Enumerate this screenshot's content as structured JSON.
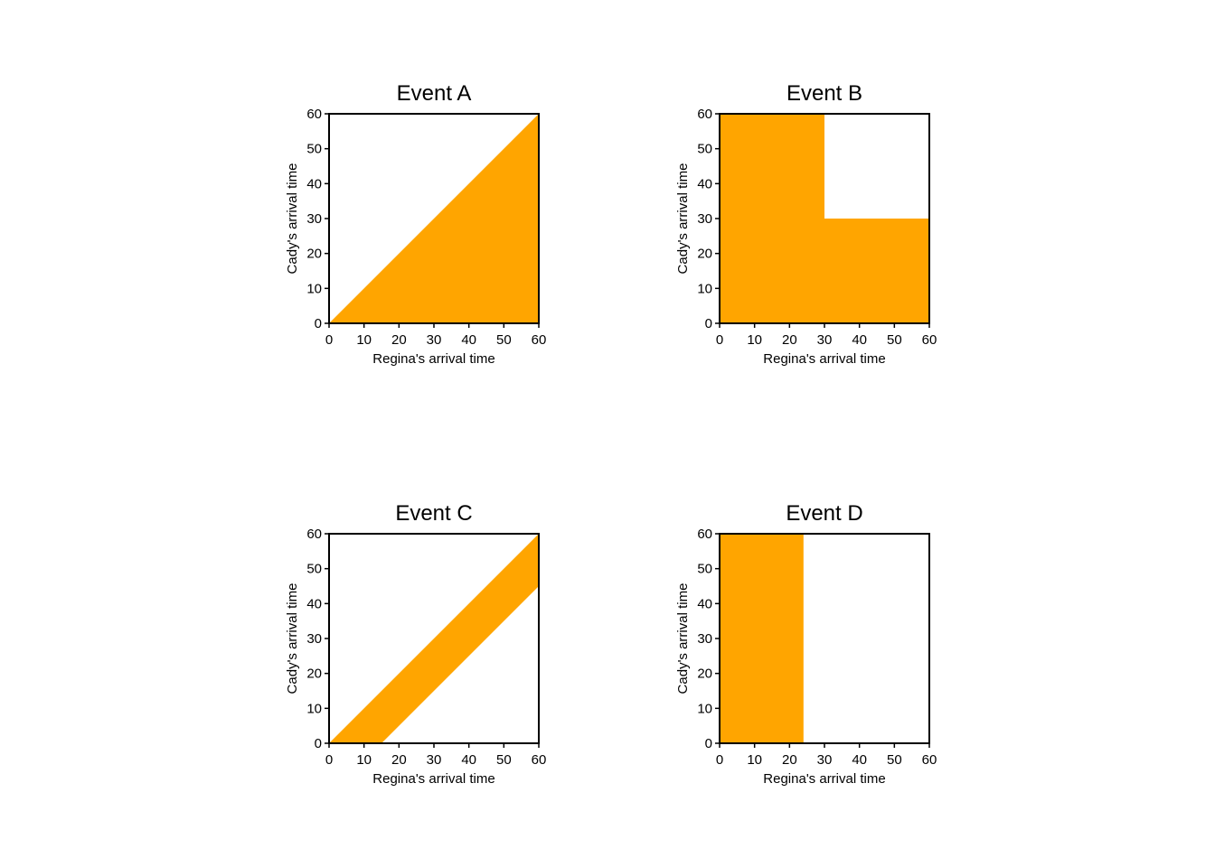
{
  "figure": {
    "fill_color": "#FFA500",
    "frame_color": "#000000",
    "background": "#FFFFFF"
  },
  "chart_data": [
    {
      "type": "area",
      "title": "Event A",
      "xlabel": "Regina's arrival time",
      "ylabel": "Cady's arrival time",
      "xlim": [
        0,
        60
      ],
      "ylim": [
        0,
        60
      ],
      "x_ticks": [
        0,
        10,
        20,
        30,
        40,
        50,
        60
      ],
      "y_ticks": [
        0,
        10,
        20,
        30,
        40,
        50,
        60
      ],
      "shaded_region": [
        [
          0,
          0
        ],
        [
          60,
          0
        ],
        [
          60,
          60
        ]
      ]
    },
    {
      "type": "area",
      "title": "Event B",
      "xlabel": "Regina's arrival time",
      "ylabel": "Cady's arrival time",
      "xlim": [
        0,
        60
      ],
      "ylim": [
        0,
        60
      ],
      "x_ticks": [
        0,
        10,
        20,
        30,
        40,
        50,
        60
      ],
      "y_ticks": [
        0,
        10,
        20,
        30,
        40,
        50,
        60
      ],
      "shaded_region": [
        [
          0,
          0
        ],
        [
          60,
          0
        ],
        [
          60,
          30
        ],
        [
          30,
          30
        ],
        [
          30,
          60
        ],
        [
          0,
          60
        ]
      ]
    },
    {
      "type": "area",
      "title": "Event C",
      "xlabel": "Regina's arrival time",
      "ylabel": "Cady's arrival time",
      "xlim": [
        0,
        60
      ],
      "ylim": [
        0,
        60
      ],
      "x_ticks": [
        0,
        10,
        20,
        30,
        40,
        50,
        60
      ],
      "y_ticks": [
        0,
        10,
        20,
        30,
        40,
        50,
        60
      ],
      "shaded_region": [
        [
          0,
          0
        ],
        [
          15,
          0
        ],
        [
          60,
          45
        ],
        [
          60,
          60
        ]
      ]
    },
    {
      "type": "area",
      "title": "Event D",
      "xlabel": "Regina's arrival time",
      "ylabel": "Cady's arrival time",
      "xlim": [
        0,
        60
      ],
      "ylim": [
        0,
        60
      ],
      "x_ticks": [
        0,
        10,
        20,
        30,
        40,
        50,
        60
      ],
      "y_ticks": [
        0,
        10,
        20,
        30,
        40,
        50,
        60
      ],
      "shaded_region": [
        [
          0,
          0
        ],
        [
          24,
          0
        ],
        [
          24,
          60
        ],
        [
          0,
          60
        ]
      ]
    }
  ]
}
